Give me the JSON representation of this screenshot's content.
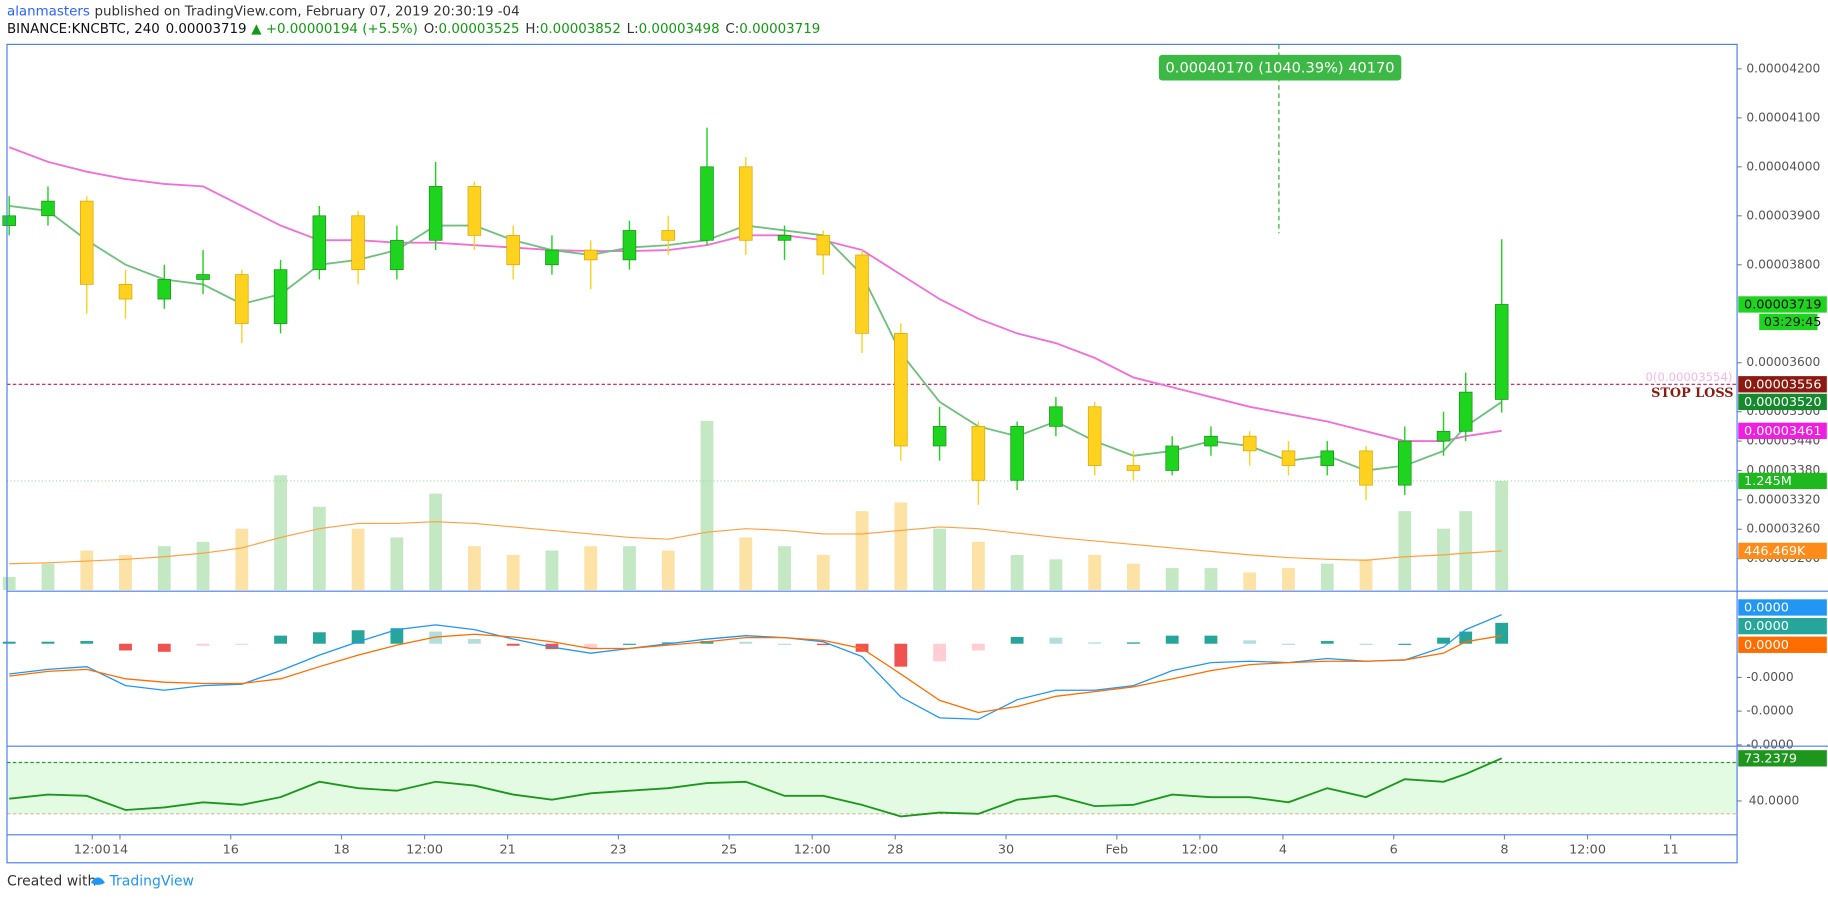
{
  "header": {
    "author": "alanmasters",
    "published": "published on TradingView.com, February 07, 2019 20:30:19 -04",
    "symbol": "BINANCE:KNCBTC, 240",
    "last": "0.00003719",
    "change": "▲ +0.00000194 (+5.5%)",
    "ohlc_keys": [
      "O:",
      "H:",
      "L:",
      "C:"
    ],
    "ohlc_values": [
      "0.00003525",
      "0.00003852",
      "0.00003498",
      "0.00003719"
    ]
  },
  "footer": {
    "created": "Created with",
    "brand": "TradingView"
  },
  "chart_data": {
    "type": "candlestick",
    "x": [
      12,
      12.7,
      13.4,
      14.1,
      14.8,
      15.5,
      16.2,
      16.9,
      17.6,
      18.3,
      19,
      19.7,
      20.4,
      21.1,
      21.8,
      22.5,
      23.2,
      23.9,
      24.6,
      25.3,
      26,
      26.7,
      27.4,
      28.1,
      28.8,
      29.5,
      30.2,
      30.9,
      31.6,
      32.3,
      33,
      33.7,
      34.4,
      35.1,
      35.8,
      36.5,
      37.2,
      37.9,
      38.3,
      38.95
    ],
    "xlim": [
      11.96,
      43.2
    ],
    "xticks": [
      {
        "value": 13.5,
        "label": "12:00"
      },
      14,
      16,
      18,
      {
        "value": 19.5,
        "label": "12:00"
      },
      21,
      23,
      25,
      {
        "value": 26.5,
        "label": "12:00"
      },
      28,
      30,
      {
        "value": 32,
        "label": "Feb"
      },
      {
        "value": 33.5,
        "label": "12:00"
      },
      {
        "value": 35,
        "label": "4"
      },
      {
        "value": 37,
        "label": "6"
      },
      {
        "value": 39,
        "label": "8"
      },
      {
        "value": 40.5,
        "label": "12:00"
      },
      {
        "value": 42,
        "label": "11"
      }
    ],
    "ylim": [
      3.136e-05,
      4.25e-05
    ],
    "yticks": [
      {
        "value": 4.2e-05,
        "label": "0.00004200"
      },
      {
        "value": 4.1e-05,
        "label": "0.00004100"
      },
      {
        "value": 4e-05,
        "label": "0.00004000"
      },
      {
        "value": 3.9e-05,
        "label": "0.00003900"
      },
      {
        "value": 3.8e-05,
        "label": "0.00003800"
      },
      {
        "value": 3.6e-05,
        "label": "0.00003600"
      },
      {
        "value": 3.5e-05,
        "label": "0.00003500"
      },
      {
        "value": 3.44e-05,
        "label": "0.00003440"
      },
      {
        "value": 3.38e-05,
        "label": "0.00003380"
      },
      {
        "value": 3.32e-05,
        "label": "0.00003320"
      },
      {
        "value": 3.26e-05,
        "label": "0.00003260"
      },
      {
        "value": 3.2e-05,
        "label": "0.00003200"
      }
    ],
    "candles": {
      "open": [
        3.88e-05,
        3.9e-05,
        3.93e-05,
        3.76e-05,
        3.73e-05,
        3.77e-05,
        3.78e-05,
        3.68e-05,
        3.79e-05,
        3.9e-05,
        3.79e-05,
        3.85e-05,
        3.96e-05,
        3.86e-05,
        3.8e-05,
        3.83e-05,
        3.81e-05,
        3.87e-05,
        3.85e-05,
        4e-05,
        3.85e-05,
        3.86e-05,
        3.82e-05,
        3.66e-05,
        3.43e-05,
        3.47e-05,
        3.36e-05,
        3.47e-05,
        3.51e-05,
        3.39e-05,
        3.38e-05,
        3.43e-05,
        3.45e-05,
        3.42e-05,
        3.39e-05,
        3.42e-05,
        3.35e-05,
        3.44e-05,
        3.46e-05,
        3.525e-05
      ],
      "high": [
        3.94e-05,
        3.96e-05,
        3.94e-05,
        3.79e-05,
        3.8e-05,
        3.83e-05,
        3.79e-05,
        3.81e-05,
        3.92e-05,
        3.91e-05,
        3.88e-05,
        4.01e-05,
        3.97e-05,
        3.88e-05,
        3.86e-05,
        3.85e-05,
        3.89e-05,
        3.9e-05,
        4.08e-05,
        4.02e-05,
        3.88e-05,
        3.87e-05,
        3.83e-05,
        3.68e-05,
        3.51e-05,
        3.48e-05,
        3.48e-05,
        3.53e-05,
        3.52e-05,
        3.42e-05,
        3.45e-05,
        3.47e-05,
        3.46e-05,
        3.44e-05,
        3.44e-05,
        3.43e-05,
        3.47e-05,
        3.5e-05,
        3.58e-05,
        3.852e-05
      ],
      "low": [
        3.86e-05,
        3.88e-05,
        3.7e-05,
        3.69e-05,
        3.71e-05,
        3.74e-05,
        3.64e-05,
        3.66e-05,
        3.77e-05,
        3.76e-05,
        3.77e-05,
        3.83e-05,
        3.83e-05,
        3.77e-05,
        3.78e-05,
        3.75e-05,
        3.79e-05,
        3.82e-05,
        3.84e-05,
        3.82e-05,
        3.81e-05,
        3.78e-05,
        3.62e-05,
        3.4e-05,
        3.4e-05,
        3.31e-05,
        3.34e-05,
        3.45e-05,
        3.37e-05,
        3.36e-05,
        3.37e-05,
        3.41e-05,
        3.39e-05,
        3.37e-05,
        3.37e-05,
        3.32e-05,
        3.33e-05,
        3.41e-05,
        3.44e-05,
        3.498e-05
      ],
      "close": [
        3.9e-05,
        3.93e-05,
        3.76e-05,
        3.73e-05,
        3.77e-05,
        3.78e-05,
        3.68e-05,
        3.79e-05,
        3.9e-05,
        3.79e-05,
        3.85e-05,
        3.96e-05,
        3.86e-05,
        3.8e-05,
        3.83e-05,
        3.81e-05,
        3.87e-05,
        3.85e-05,
        4e-05,
        3.85e-05,
        3.86e-05,
        3.82e-05,
        3.66e-05,
        3.43e-05,
        3.47e-05,
        3.36e-05,
        3.47e-05,
        3.51e-05,
        3.39e-05,
        3.38e-05,
        3.43e-05,
        3.45e-05,
        3.42e-05,
        3.39e-05,
        3.42e-05,
        3.35e-05,
        3.44e-05,
        3.46e-05,
        3.54e-05,
        3.719e-05
      ],
      "value_labels": [
        null,
        null,
        null,
        null,
        null,
        null,
        null,
        null,
        null,
        null,
        null,
        null,
        null,
        null,
        null,
        null,
        null,
        null,
        null,
        null,
        null,
        null,
        null,
        null,
        null,
        null,
        null,
        null,
        null,
        null,
        null,
        null,
        null,
        null,
        null,
        null,
        null,
        null,
        null,
        "0.00003719"
      ],
      "countdown": "03:29:45",
      "up_color": "#1fd41f",
      "down_color": "#ffd21f",
      "label_color": "#1fd41f"
    },
    "ma_fast": {
      "color": "#72c080",
      "label_color": "#148a2c",
      "values": [
        3.92e-05,
        3.91e-05,
        3.85e-05,
        3.8e-05,
        3.77e-05,
        3.76e-05,
        3.72e-05,
        3.74e-05,
        3.8e-05,
        3.81e-05,
        3.83e-05,
        3.88e-05,
        3.88e-05,
        3.85e-05,
        3.83e-05,
        3.82e-05,
        3.835e-05,
        3.84e-05,
        3.85e-05,
        3.88e-05,
        3.87e-05,
        3.86e-05,
        3.78e-05,
        3.62e-05,
        3.52e-05,
        3.47e-05,
        3.45e-05,
        3.48e-05,
        3.44e-05,
        3.41e-05,
        3.42e-05,
        3.44e-05,
        3.43e-05,
        3.4e-05,
        3.41e-05,
        3.38e-05,
        3.39e-05,
        3.42e-05,
        3.47e-05,
        3.52e-05
      ],
      "value_labels": [
        null,
        null,
        null,
        null,
        null,
        null,
        null,
        null,
        null,
        null,
        null,
        null,
        null,
        null,
        null,
        null,
        null,
        null,
        null,
        null,
        null,
        null,
        null,
        null,
        null,
        null,
        null,
        null,
        null,
        null,
        null,
        null,
        null,
        null,
        null,
        null,
        null,
        null,
        null,
        "0.00003520"
      ]
    },
    "ma_slow": {
      "color": "#f070d8",
      "label_color": "#f01ee0",
      "values": [
        4.04e-05,
        4.01e-05,
        3.99e-05,
        3.975e-05,
        3.965e-05,
        3.96e-05,
        3.92e-05,
        3.88e-05,
        3.85e-05,
        3.85e-05,
        3.845e-05,
        3.845e-05,
        3.84e-05,
        3.835e-05,
        3.83e-05,
        3.828e-05,
        3.828e-05,
        3.83e-05,
        3.84e-05,
        3.86e-05,
        3.86e-05,
        3.85e-05,
        3.83e-05,
        3.78e-05,
        3.73e-05,
        3.69e-05,
        3.66e-05,
        3.64e-05,
        3.61e-05,
        3.57e-05,
        3.55e-05,
        3.53e-05,
        3.51e-05,
        3.495e-05,
        3.48e-05,
        3.46e-05,
        3.44e-05,
        3.44e-05,
        3.45e-05,
        3.461e-05
      ],
      "value_labels": [
        null,
        null,
        null,
        null,
        null,
        null,
        null,
        null,
        null,
        null,
        null,
        null,
        null,
        null,
        null,
        null,
        null,
        null,
        null,
        null,
        null,
        null,
        null,
        null,
        null,
        null,
        null,
        null,
        null,
        null,
        null,
        null,
        null,
        null,
        null,
        null,
        null,
        null,
        null,
        "0.00003461"
      ]
    },
    "stop_loss": {
      "value": 3.556e-05,
      "label": "0.00003556",
      "text": "STOP LOSS",
      "note": "0(0.00003554)",
      "color": "#c2185b",
      "label_color": "#8b1a10"
    },
    "measure": "0.00040170 (1040.39%) 40170",
    "volume": {
      "up_color": "#c3e8c3",
      "down_color": "#fde2a6",
      "label_color": "#1fb81f",
      "values": [
        150000,
        300000,
        450000,
        400000,
        500000,
        550000,
        700000,
        1310000,
        950000,
        700000,
        600000,
        1100000,
        500000,
        400000,
        450000,
        500000,
        500000,
        450000,
        1930000,
        600000,
        500000,
        400000,
        900000,
        1000000,
        700000,
        550000,
        400000,
        350000,
        400000,
        300000,
        250000,
        250000,
        200000,
        250000,
        300000,
        350000,
        900000,
        700000,
        900000,
        1245000
      ],
      "value_labels": [
        null,
        null,
        null,
        null,
        null,
        null,
        null,
        null,
        null,
        null,
        null,
        null,
        null,
        null,
        null,
        null,
        null,
        null,
        null,
        null,
        null,
        null,
        null,
        null,
        null,
        null,
        null,
        null,
        null,
        null,
        null,
        null,
        null,
        null,
        null,
        null,
        null,
        null,
        null,
        "1.245M"
      ],
      "ma": {
        "color": "#ffa040",
        "label_color": "#ff8c1a",
        "values": [
          300000,
          310000,
          330000,
          350000,
          380000,
          420000,
          480000,
          600000,
          700000,
          760000,
          760000,
          780000,
          760000,
          720000,
          680000,
          640000,
          600000,
          580000,
          660000,
          700000,
          680000,
          640000,
          640000,
          680000,
          720000,
          700000,
          650000,
          600000,
          560000,
          520000,
          480000,
          440000,
          400000,
          370000,
          350000,
          340000,
          380000,
          400000,
          420000,
          446469
        ],
        "value_labels": [
          null,
          null,
          null,
          null,
          null,
          null,
          null,
          null,
          null,
          null,
          null,
          null,
          null,
          null,
          null,
          null,
          null,
          null,
          null,
          null,
          null,
          null,
          null,
          null,
          null,
          null,
          null,
          null,
          null,
          null,
          null,
          null,
          null,
          null,
          null,
          null,
          null,
          null,
          null,
          "446.469K"
        ]
      }
    },
    "macd": {
      "ylim": [
        -1.52e-06,
        7.8e-07
      ],
      "yticks": [
        {
          "value": -5e-07,
          "label": "-0.0000"
        },
        {
          "value": -1e-06,
          "label": "-0.0000"
        },
        {
          "value": -1.5e-06,
          "label": "-0.0000"
        }
      ],
      "macd": {
        "color": "#2196f3",
        "label_color": "#2196f3",
        "values": [
          -4.5e-07,
          -3.8e-07,
          -3.4e-07,
          -6.2e-07,
          -6.9e-07,
          -6.2e-07,
          -6e-07,
          -4e-07,
          -1.7e-07,
          3e-08,
          2.1e-07,
          2.8e-07,
          2.1e-07,
          7e-08,
          -5e-08,
          -1.4e-07,
          -7e-08,
          0,
          7e-08,
          1.2e-07,
          9e-08,
          3e-08,
          -1.9e-07,
          -7.9e-07,
          -1.1e-06,
          -1.12e-06,
          -8.3e-07,
          -6.9e-07,
          -6.9e-07,
          -6.2e-07,
          -4e-07,
          -2.8e-07,
          -2.6e-07,
          -2.8e-07,
          -2.2e-07,
          -2.6e-07,
          -2.4e-07,
          -5e-08,
          2.1e-07,
          4.3e-07
        ],
        "value_labels": [
          null,
          null,
          null,
          null,
          null,
          null,
          null,
          null,
          null,
          null,
          null,
          null,
          null,
          null,
          null,
          null,
          null,
          null,
          null,
          null,
          null,
          null,
          null,
          null,
          null,
          null,
          null,
          null,
          null,
          null,
          null,
          null,
          null,
          null,
          null,
          null,
          null,
          null,
          null,
          "0.0000"
        ]
      },
      "histogram": {
        "colors": [
          "#26a69a",
          "#b2dfdb",
          "#ef5350",
          "#ffcdd2"
        ],
        "label_color": "#26a69a",
        "values": [
          3e-08,
          3e-08,
          4e-08,
          -1e-07,
          -1.2e-07,
          -3e-08,
          -1e-08,
          1.2e-07,
          1.7e-07,
          2e-07,
          2.3e-07,
          1.8e-07,
          7e-08,
          -3e-08,
          -8e-08,
          -7e-08,
          0,
          2e-08,
          4e-08,
          3e-08,
          0,
          -2e-08,
          -1.2e-07,
          -3.4e-07,
          -2.6e-07,
          -1e-07,
          1e-07,
          9e-08,
          2e-08,
          2e-08,
          1.2e-07,
          1.2e-07,
          5e-08,
          0,
          4e-08,
          0,
          0,
          9e-08,
          1.8e-07,
          3.1e-07
        ],
        "value_labels": [
          null,
          null,
          null,
          null,
          null,
          null,
          null,
          null,
          null,
          null,
          null,
          null,
          null,
          null,
          null,
          null,
          null,
          null,
          null,
          null,
          null,
          null,
          null,
          null,
          null,
          null,
          null,
          null,
          null,
          null,
          null,
          null,
          null,
          null,
          null,
          null,
          null,
          null,
          null,
          "0.0000"
        ]
      },
      "signal": {
        "color": "#ff6d00",
        "label_color": "#ff6d00",
        "values": [
          -4.8e-07,
          -4.1e-07,
          -3.8e-07,
          -5.2e-07,
          -5.7e-07,
          -5.9e-07,
          -5.9e-07,
          -5.2e-07,
          -3.4e-07,
          -1.7e-07,
          -2e-08,
          1e-07,
          1.4e-07,
          1e-07,
          3e-08,
          -7e-08,
          -7e-08,
          -2e-08,
          3e-08,
          9e-08,
          9e-08,
          5e-08,
          -7e-08,
          -4.5e-07,
          -8.4e-07,
          -1.02e-06,
          -9.3e-07,
          -7.8e-07,
          -7.1e-07,
          -6.4e-07,
          -5.2e-07,
          -4e-07,
          -3.1e-07,
          -2.8e-07,
          -2.6e-07,
          -2.6e-07,
          -2.4e-07,
          -1.4e-07,
          3e-08,
          1.2e-07
        ],
        "value_labels": [
          null,
          null,
          null,
          null,
          null,
          null,
          null,
          null,
          null,
          null,
          null,
          null,
          null,
          null,
          null,
          null,
          null,
          null,
          null,
          null,
          null,
          null,
          null,
          null,
          null,
          null,
          null,
          null,
          null,
          null,
          null,
          null,
          null,
          null,
          null,
          null,
          null,
          null,
          null,
          "0.0000"
        ]
      }
    },
    "rsi": {
      "ylim": [
        13.6,
        81.8
      ],
      "yticks": [
        {
          "value": 40,
          "label": "40.0000"
        }
      ],
      "bands": [
        30,
        70
      ],
      "color": "#1e961e",
      "label_color": "#1e961e",
      "band_color": "#e3fbe3",
      "values": [
        41.8,
        45,
        44,
        33,
        35,
        39,
        37,
        43,
        55,
        50,
        48,
        55,
        52,
        45,
        41,
        46,
        48,
        50,
        54,
        55,
        44,
        44,
        37,
        28,
        31,
        30,
        41,
        44,
        36,
        37,
        45,
        43,
        43,
        39,
        50,
        43,
        57,
        55,
        61,
        73.2379
      ],
      "value_labels": [
        null,
        null,
        null,
        null,
        null,
        null,
        null,
        null,
        null,
        null,
        null,
        null,
        null,
        null,
        null,
        null,
        null,
        null,
        null,
        null,
        null,
        null,
        null,
        null,
        null,
        null,
        null,
        null,
        null,
        null,
        null,
        null,
        null,
        null,
        null,
        null,
        null,
        null,
        null,
        "73.2379"
      ]
    }
  }
}
